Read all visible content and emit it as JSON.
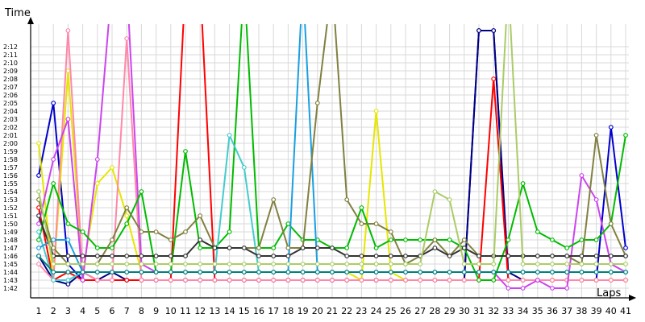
{
  "chart_data": {
    "type": "line",
    "ylabel": "Time",
    "xlabel": "Laps",
    "x": [
      1,
      2,
      3,
      4,
      5,
      6,
      7,
      8,
      9,
      10,
      11,
      12,
      13,
      14,
      15,
      16,
      17,
      18,
      19,
      20,
      21,
      22,
      23,
      24,
      25,
      26,
      27,
      28,
      29,
      30,
      31,
      32,
      33,
      34,
      35,
      36,
      37,
      38,
      39,
      40,
      41
    ],
    "x_tick_labels": [
      "1",
      "2",
      "3",
      "4",
      "5",
      "6",
      "7",
      "8",
      "9",
      "10",
      "11",
      "12",
      "13",
      "14",
      "15",
      "16",
      "17",
      "18",
      "19",
      "20",
      "21",
      "22",
      "23",
      "24",
      "25",
      "26",
      "27",
      "28",
      "29",
      "30",
      "31",
      "32",
      "33",
      "34",
      "35",
      "36",
      "37",
      "38",
      "39",
      "40",
      "41"
    ],
    "y_unit": "seconds (labels shown as m:ss)",
    "ylim": [
      101,
      135
    ],
    "y_ticks": [
      102,
      103,
      104,
      105,
      106,
      107,
      108,
      109,
      110,
      111,
      112,
      113,
      114,
      115,
      116,
      117,
      118,
      119,
      120,
      121,
      122,
      123,
      124,
      125,
      126,
      127,
      128,
      129,
      130,
      131,
      132
    ],
    "y_tick_labels": [
      "1:42",
      "1:43",
      "1:44",
      "1:45",
      "1:46",
      "1:47",
      "1:48",
      "1:49",
      "1:50",
      "1:51",
      "1:52",
      "1:53",
      "1:54",
      "1:55",
      "1:56",
      "1:57",
      "1:58",
      "1:59",
      "2:00",
      "2:01",
      "2:02",
      "2:03",
      "2:04",
      "2:05",
      "2:06",
      "2:07",
      "2:08",
      "2:09",
      "2:10",
      "2:11",
      "2:12"
    ],
    "grid": true,
    "legend": "none",
    "series": [
      {
        "color": "#0000cc",
        "values": [
          116,
          125,
          105,
          103,
          103,
          103,
          103,
          103,
          103,
          103,
          103,
          103,
          103,
          103,
          103,
          103,
          103,
          103,
          103,
          103,
          103,
          103,
          103,
          103,
          103,
          103,
          103,
          103,
          103,
          103,
          134,
          134,
          103,
          103,
          103,
          103,
          103,
          103,
          103,
          122,
          107
        ]
      },
      {
        "color": "#000080",
        "values": [
          106,
          103,
          102.5,
          104,
          103,
          104,
          103,
          103,
          103,
          103,
          103,
          103,
          103,
          103,
          103,
          103,
          103,
          103,
          103,
          103,
          103,
          103,
          103,
          103,
          103,
          103,
          103,
          103,
          103,
          103,
          134,
          134,
          104,
          103,
          103,
          103,
          103,
          103,
          103,
          103,
          103
        ]
      },
      {
        "color": "#ff0000",
        "values": [
          112,
          103,
          104,
          103,
          103,
          103,
          103,
          103,
          103,
          103,
          140,
          140,
          103,
          103,
          103,
          103,
          103,
          103,
          103,
          103,
          103,
          103,
          103,
          103,
          103,
          103,
          103,
          103,
          103,
          103,
          103,
          128,
          103,
          103,
          103,
          103,
          103,
          103,
          103,
          103,
          103
        ]
      },
      {
        "color": "#e6e600",
        "values": [
          120,
          103,
          129,
          104,
          115,
          117,
          111,
          104,
          104,
          104,
          104,
          104,
          104,
          104,
          104,
          104,
          104,
          104,
          104,
          104,
          104,
          104,
          103,
          124,
          104,
          103,
          103,
          103,
          103,
          103,
          103,
          103,
          103,
          103,
          103,
          103,
          103,
          103,
          103,
          103,
          103
        ]
      },
      {
        "color": "#ff88aa",
        "values": [
          105,
          103,
          134,
          104,
          103,
          103,
          133,
          103,
          103,
          103,
          103,
          103,
          103,
          103,
          103,
          103,
          103,
          103,
          103,
          103,
          103,
          103,
          103,
          103,
          103,
          103,
          103,
          103,
          103,
          103,
          103,
          103,
          103,
          103,
          103,
          103,
          103,
          103,
          103,
          103,
          103
        ]
      },
      {
        "color": "#cc44ee",
        "values": [
          110,
          118,
          123,
          103,
          118,
          140,
          140,
          105,
          104,
          104,
          104,
          104,
          104,
          104,
          104,
          104,
          104,
          104,
          104,
          104,
          104,
          104,
          104,
          104,
          104,
          104,
          104,
          104,
          104,
          104,
          104,
          104,
          102,
          102,
          103,
          102,
          102,
          116,
          113,
          105,
          104
        ]
      },
      {
        "color": "#00bb00",
        "values": [
          108,
          115,
          110,
          109,
          107,
          107,
          110,
          114,
          104,
          104,
          119,
          107,
          107,
          109,
          140,
          107,
          107,
          110,
          108,
          108,
          107,
          107,
          112,
          107,
          108,
          108,
          108,
          108,
          108,
          107,
          103,
          103,
          108,
          115,
          109,
          108,
          107,
          108,
          108,
          110,
          121
        ]
      },
      {
        "color": "#44cccc",
        "values": [
          109,
          103,
          103,
          104,
          104,
          104,
          104,
          104,
          104,
          104,
          104,
          104,
          104,
          121,
          117,
          104,
          104,
          104,
          104,
          104,
          104,
          104,
          104,
          104,
          104,
          104,
          104,
          104,
          104,
          104,
          104,
          104,
          104,
          104,
          104,
          104,
          104,
          104,
          104,
          104,
          104
        ]
      },
      {
        "color": "#1a9fe0",
        "values": [
          107,
          108,
          108,
          104,
          104,
          104,
          104,
          104,
          104,
          104,
          104,
          104,
          104,
          104,
          104,
          104,
          104,
          104,
          140,
          104,
          104,
          104,
          104,
          104,
          104,
          104,
          104,
          104,
          104,
          104,
          104,
          104,
          104,
          104,
          104,
          104,
          104,
          104,
          104,
          104,
          104
        ]
      },
      {
        "color": "#808040",
        "values": [
          113,
          107,
          105,
          105,
          105,
          108,
          112,
          109,
          109,
          108,
          109,
          111,
          107,
          107,
          107,
          107,
          113,
          107,
          107,
          125,
          140,
          113,
          110,
          110,
          109,
          105,
          106,
          108,
          106,
          108,
          106,
          106,
          106,
          106,
          106,
          106,
          106,
          105,
          121,
          110,
          106
        ]
      },
      {
        "color": "#333333",
        "values": [
          111,
          106,
          106,
          106,
          106,
          106,
          106,
          106,
          106,
          106,
          106,
          108,
          107,
          107,
          107,
          106,
          106,
          106,
          107,
          107,
          107,
          106,
          106,
          106,
          106,
          106,
          106,
          107,
          106,
          107,
          106,
          106,
          106,
          106,
          106,
          106,
          106,
          106,
          106,
          106,
          106
        ]
      },
      {
        "color": "#aacc66",
        "values": [
          114,
          105,
          105,
          105,
          105,
          105,
          105,
          105,
          105,
          105,
          105,
          105,
          105,
          105,
          105,
          105,
          105,
          105,
          105,
          105,
          105,
          105,
          105,
          105,
          105,
          105,
          105,
          114,
          113,
          105,
          105,
          105,
          140,
          105,
          105,
          105,
          105,
          105,
          105,
          105,
          105
        ]
      },
      {
        "color": "#008080",
        "values": [
          106,
          104,
          104,
          104,
          104,
          104,
          104,
          104,
          104,
          104,
          104,
          104,
          104,
          104,
          104,
          104,
          104,
          104,
          104,
          104,
          104,
          104,
          104,
          104,
          104,
          104,
          104,
          104,
          104,
          104,
          104,
          104,
          104,
          104,
          104,
          104,
          104,
          104,
          104,
          104,
          104
        ]
      }
    ]
  }
}
